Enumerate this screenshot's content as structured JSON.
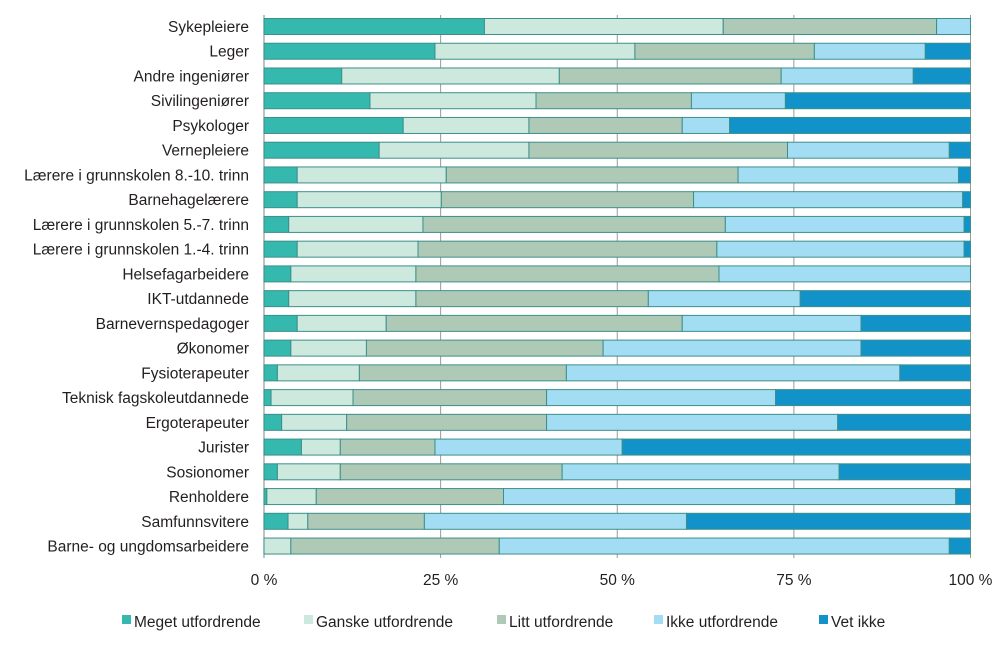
{
  "chart_data": {
    "type": "bar",
    "orientation": "horizontal",
    "stacked": "percent",
    "title": "",
    "xlabel": "",
    "ylabel": "",
    "xlim": [
      0,
      100
    ],
    "x_ticks": [
      0,
      25,
      50,
      75,
      100
    ],
    "x_tick_labels": [
      "0 %",
      "25 %",
      "50 %",
      "75 %",
      "100 %"
    ],
    "grid": true,
    "legend_position": "bottom",
    "categories": [
      "Sykepleiere",
      "Leger",
      "Andre ingeniører",
      "Sivilingeniører",
      "Psykologer",
      "Vernepleiere",
      "Lærere i grunnskolen 8.-10. trinn",
      "Barnehagelærere",
      "Lærere i grunnskolen 5.-7. trinn",
      "Lærere i grunnskolen 1.-4. trinn",
      "Helsefagarbeidere",
      "IKT-utdannede",
      "Barnevernspedagoger",
      "Økonomer",
      "Fysioterapeuter",
      "Teknisk fagskoleutdannede",
      "Ergoterapeuter",
      "Jurister",
      "Sosionomer",
      "Renholdere",
      "Samfunnsvitere",
      "Barne- og ungdomsarbeidere"
    ],
    "series": [
      {
        "name": "Meget utfordrende",
        "color": "#35b8ae",
        "values": [
          31.2,
          24.2,
          11.0,
          15.0,
          19.7,
          16.3,
          4.7,
          4.7,
          3.5,
          4.7,
          3.8,
          3.5,
          4.7,
          3.8,
          1.9,
          1.0,
          2.5,
          5.3,
          1.9,
          0.4,
          3.4,
          0.0
        ]
      },
      {
        "name": "Ganske utfordrende",
        "color": "#cde8dd",
        "values": [
          33.8,
          28.3,
          30.8,
          23.5,
          17.8,
          21.2,
          21.1,
          20.4,
          19.0,
          17.1,
          17.7,
          18.0,
          12.6,
          10.7,
          11.6,
          11.6,
          9.2,
          5.5,
          8.9,
          7.0,
          2.8,
          3.8
        ]
      },
      {
        "name": "Litt utfordrende",
        "color": "#afc9b7",
        "values": [
          30.2,
          25.4,
          31.4,
          22.0,
          21.7,
          36.6,
          41.3,
          35.7,
          42.8,
          42.3,
          42.9,
          32.9,
          41.9,
          33.5,
          29.3,
          27.4,
          28.3,
          13.4,
          31.4,
          26.5,
          16.5,
          29.5
        ]
      },
      {
        "name": "Ikke utfordrende",
        "color": "#a3ddf4",
        "values": [
          4.8,
          15.7,
          18.7,
          13.3,
          6.7,
          22.9,
          31.2,
          38.1,
          33.8,
          35.0,
          35.6,
          21.5,
          25.3,
          36.5,
          47.2,
          32.4,
          41.2,
          26.5,
          39.2,
          64.0,
          37.1,
          63.7
        ]
      },
      {
        "name": "Vet ikke",
        "color": "#1192c8",
        "values": [
          0.0,
          6.4,
          8.1,
          26.2,
          34.1,
          3.0,
          1.7,
          1.1,
          0.9,
          0.9,
          0.0,
          24.1,
          15.5,
          15.5,
          10.0,
          27.6,
          18.8,
          49.3,
          18.6,
          2.1,
          40.2,
          3.0
        ]
      }
    ]
  }
}
